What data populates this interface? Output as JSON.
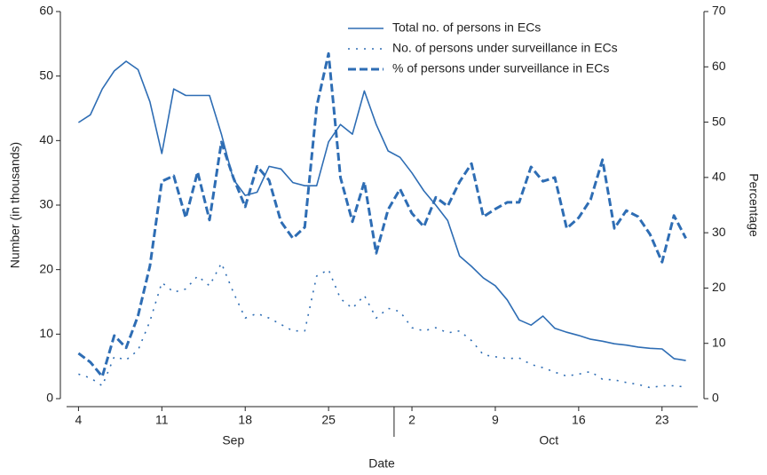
{
  "chart_data": {
    "type": "line",
    "xlabel": "Date",
    "ylabel": "Number (in thousands)",
    "y2label": "Percentage",
    "x": [
      "09-04",
      "09-05",
      "09-06",
      "09-07",
      "09-08",
      "09-09",
      "09-10",
      "09-11",
      "09-12",
      "09-13",
      "09-14",
      "09-15",
      "09-16",
      "09-17",
      "09-18",
      "09-19",
      "09-20",
      "09-21",
      "09-22",
      "09-23",
      "09-24",
      "09-25",
      "09-26",
      "09-27",
      "09-28",
      "09-29",
      "09-30",
      "10-01",
      "10-02",
      "10-03",
      "10-04",
      "10-05",
      "10-06",
      "10-07",
      "10-08",
      "10-09",
      "10-10",
      "10-11",
      "10-12",
      "10-13",
      "10-14",
      "10-15",
      "10-16",
      "10-17",
      "10-18",
      "10-19",
      "10-20",
      "10-21",
      "10-22",
      "10-23",
      "10-24",
      "10-25"
    ],
    "xlim": [
      "09-03",
      "10-26"
    ],
    "xticks": [
      {
        "value": "09-04",
        "label": "4"
      },
      {
        "value": "09-11",
        "label": "11"
      },
      {
        "value": "09-18",
        "label": "18"
      },
      {
        "value": "09-25",
        "label": "25"
      },
      {
        "value": "10-02",
        "label": "2"
      },
      {
        "value": "10-09",
        "label": "9"
      },
      {
        "value": "10-16",
        "label": "16"
      },
      {
        "value": "10-23",
        "label": "23"
      }
    ],
    "xgroups": [
      {
        "label": "Sep",
        "start": "09-04",
        "end": "09-30"
      },
      {
        "label": "Oct",
        "start": "10-01",
        "end": "10-26"
      }
    ],
    "ylim": [
      0,
      60
    ],
    "yticks": [
      0,
      10,
      20,
      30,
      40,
      50,
      60
    ],
    "y2lim": [
      0,
      70
    ],
    "y2ticks": [
      0,
      10,
      20,
      30,
      40,
      50,
      60,
      70
    ],
    "series": [
      {
        "name": "Total no. of persons in ECs",
        "color": "#2e6db4",
        "style": "solid",
        "values": [
          42.8,
          44,
          48,
          50.8,
          52.3,
          51,
          46,
          38,
          48,
          47,
          47,
          47,
          41,
          34,
          31.5,
          32,
          36,
          35.6,
          33.5,
          33,
          33,
          39.8,
          42.5,
          41,
          47.7,
          42.5,
          38.4,
          37.4,
          35,
          32.2,
          30,
          27.6,
          22.1,
          20.5,
          18.7,
          17.5,
          15.3,
          12.2,
          11.4,
          12.8,
          10.9,
          10.3,
          9.8,
          9.2,
          8.9,
          8.5,
          8.3,
          8.0,
          7.8,
          7.7,
          6.2,
          5.9
        ]
      },
      {
        "name": "No. of persons under surveillance in ECs",
        "color": "#2e6db4",
        "style": "dotted",
        "values": [
          3.8,
          3.2,
          2.0,
          6.5,
          6,
          7.5,
          12,
          18,
          16.5,
          17,
          19,
          17.5,
          21,
          16.5,
          12.5,
          13.2,
          12.5,
          11.5,
          10.5,
          10.5,
          19,
          20,
          15.5,
          14,
          16,
          12.5,
          14,
          13.5,
          11,
          10.5,
          11,
          10.2,
          10.5,
          9,
          6.8,
          6.5,
          6.2,
          6.3,
          5.3,
          4.8,
          4.1,
          3.5,
          3.8,
          4.2,
          3.0,
          2.9,
          2.5,
          2.2,
          1.7,
          2.0,
          2.0,
          1.8
        ]
      },
      {
        "name": "% of persons under surveillance in ECs",
        "color": "#2e6db4",
        "style": "dashed",
        "axis": "y2",
        "values": [
          8.2,
          6.6,
          4.0,
          11.4,
          9.2,
          15,
          24,
          39.3,
          40.3,
          32.7,
          41,
          32.3,
          46.4,
          40,
          34.7,
          42,
          39.5,
          32,
          29,
          31,
          52.8,
          62.4,
          40,
          32,
          39.2,
          26.3,
          34.2,
          37.9,
          33.5,
          31.1,
          36.4,
          34.8,
          39.2,
          42.5,
          32.9,
          34.3,
          35.5,
          35.5,
          41.9,
          39.3,
          40,
          30.8,
          32.7,
          36,
          43.2,
          30.8,
          34,
          32.9,
          29.7,
          24.7,
          33.1,
          29
        ]
      }
    ]
  }
}
